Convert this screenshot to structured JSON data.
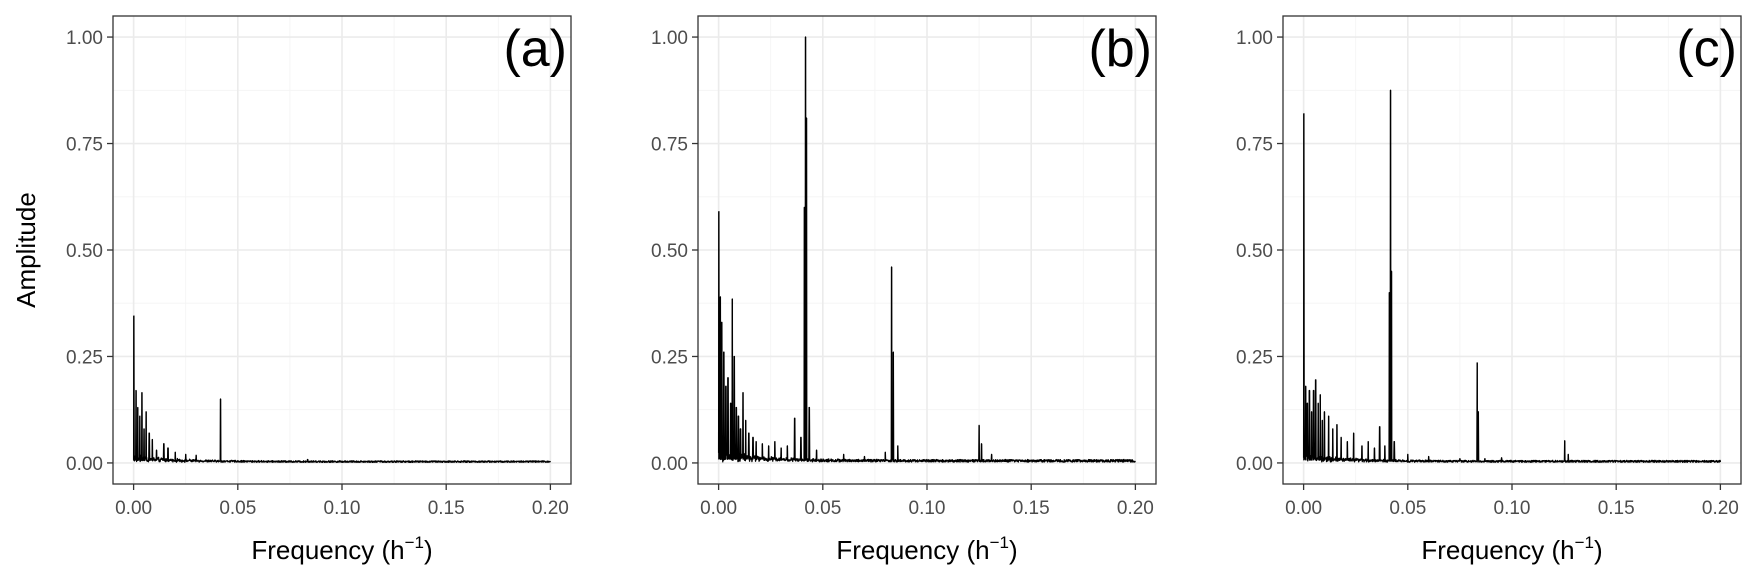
{
  "figure": {
    "ylabel": "Amplitude",
    "xlabel": "Frequency (h",
    "xlabel_sup": "−1",
    "xlabel_close": ")"
  },
  "chart_data": [
    {
      "type": "line",
      "panel_label": "(a)",
      "xlabel": "Frequency (h−1)",
      "ylabel": "Amplitude",
      "xlim": [
        0.0,
        0.2
      ],
      "ylim": [
        0.0,
        1.0
      ],
      "x_ticks": [
        "0.00",
        "0.05",
        "0.10",
        "0.15",
        "0.20"
      ],
      "y_ticks": [
        "0.00",
        "0.25",
        "0.50",
        "0.75",
        "1.00"
      ],
      "grid": true,
      "peaks": [
        {
          "x": 0.0001,
          "y": 0.345
        },
        {
          "x": 0.0012,
          "y": 0.17
        },
        {
          "x": 0.002,
          "y": 0.13
        },
        {
          "x": 0.003,
          "y": 0.11
        },
        {
          "x": 0.004,
          "y": 0.165
        },
        {
          "x": 0.005,
          "y": 0.08
        },
        {
          "x": 0.006,
          "y": 0.12
        },
        {
          "x": 0.0075,
          "y": 0.07
        },
        {
          "x": 0.009,
          "y": 0.055
        },
        {
          "x": 0.011,
          "y": 0.03
        },
        {
          "x": 0.0145,
          "y": 0.045
        },
        {
          "x": 0.0165,
          "y": 0.035
        },
        {
          "x": 0.02,
          "y": 0.025
        },
        {
          "x": 0.025,
          "y": 0.02
        },
        {
          "x": 0.03,
          "y": 0.018
        },
        {
          "x": 0.0417,
          "y": 0.15
        },
        {
          "x": 0.0835,
          "y": 0.008
        },
        {
          "x": 0.125,
          "y": 0.004
        }
      ],
      "noise_floor": 0.005
    },
    {
      "type": "line",
      "panel_label": "(b)",
      "xlabel": "Frequency (h−1)",
      "xlim": [
        0.0,
        0.2
      ],
      "ylim": [
        0.0,
        1.0
      ],
      "x_ticks": [
        "0.00",
        "0.05",
        "0.10",
        "0.15",
        "0.20"
      ],
      "y_ticks": [
        "0.00",
        "0.25",
        "0.50",
        "0.75",
        "1.00"
      ],
      "grid": true,
      "peaks": [
        {
          "x": 0.0001,
          "y": 0.59
        },
        {
          "x": 0.0008,
          "y": 0.39
        },
        {
          "x": 0.0015,
          "y": 0.33
        },
        {
          "x": 0.0025,
          "y": 0.26
        },
        {
          "x": 0.0035,
          "y": 0.18
        },
        {
          "x": 0.0045,
          "y": 0.2
        },
        {
          "x": 0.0058,
          "y": 0.14
        },
        {
          "x": 0.0066,
          "y": 0.385
        },
        {
          "x": 0.0075,
          "y": 0.25
        },
        {
          "x": 0.0085,
          "y": 0.13
        },
        {
          "x": 0.0095,
          "y": 0.11
        },
        {
          "x": 0.0105,
          "y": 0.08
        },
        {
          "x": 0.0117,
          "y": 0.165
        },
        {
          "x": 0.013,
          "y": 0.1
        },
        {
          "x": 0.0145,
          "y": 0.07
        },
        {
          "x": 0.0165,
          "y": 0.06
        },
        {
          "x": 0.018,
          "y": 0.05
        },
        {
          "x": 0.021,
          "y": 0.045
        },
        {
          "x": 0.024,
          "y": 0.04
        },
        {
          "x": 0.027,
          "y": 0.05
        },
        {
          "x": 0.03,
          "y": 0.035
        },
        {
          "x": 0.033,
          "y": 0.04
        },
        {
          "x": 0.0365,
          "y": 0.105
        },
        {
          "x": 0.0395,
          "y": 0.06
        },
        {
          "x": 0.0412,
          "y": 0.6
        },
        {
          "x": 0.0417,
          "y": 1.0
        },
        {
          "x": 0.0422,
          "y": 0.81
        },
        {
          "x": 0.0435,
          "y": 0.13
        },
        {
          "x": 0.047,
          "y": 0.03
        },
        {
          "x": 0.06,
          "y": 0.02
        },
        {
          "x": 0.07,
          "y": 0.015
        },
        {
          "x": 0.08,
          "y": 0.025
        },
        {
          "x": 0.083,
          "y": 0.46
        },
        {
          "x": 0.0838,
          "y": 0.26
        },
        {
          "x": 0.086,
          "y": 0.04
        },
        {
          "x": 0.1,
          "y": 0.008
        },
        {
          "x": 0.125,
          "y": 0.088
        },
        {
          "x": 0.1262,
          "y": 0.045
        },
        {
          "x": 0.131,
          "y": 0.02
        },
        {
          "x": 0.15,
          "y": 0.005
        }
      ],
      "noise_floor": 0.008
    },
    {
      "type": "line",
      "panel_label": "(c)",
      "xlabel": "Frequency (h−1)",
      "xlim": [
        0.0,
        0.2
      ],
      "ylim": [
        0.0,
        1.0
      ],
      "x_ticks": [
        "0.00",
        "0.05",
        "0.10",
        "0.15",
        "0.20"
      ],
      "y_ticks": [
        "0.00",
        "0.25",
        "0.50",
        "0.75",
        "1.00"
      ],
      "grid": true,
      "peaks": [
        {
          "x": 0.0001,
          "y": 0.82
        },
        {
          "x": 0.001,
          "y": 0.18
        },
        {
          "x": 0.0018,
          "y": 0.14
        },
        {
          "x": 0.0028,
          "y": 0.17
        },
        {
          "x": 0.0038,
          "y": 0.12
        },
        {
          "x": 0.0048,
          "y": 0.17
        },
        {
          "x": 0.0058,
          "y": 0.195
        },
        {
          "x": 0.007,
          "y": 0.14
        },
        {
          "x": 0.008,
          "y": 0.16
        },
        {
          "x": 0.009,
          "y": 0.1
        },
        {
          "x": 0.01,
          "y": 0.12
        },
        {
          "x": 0.012,
          "y": 0.11
        },
        {
          "x": 0.014,
          "y": 0.08
        },
        {
          "x": 0.016,
          "y": 0.09
        },
        {
          "x": 0.018,
          "y": 0.06
        },
        {
          "x": 0.021,
          "y": 0.05
        },
        {
          "x": 0.024,
          "y": 0.07
        },
        {
          "x": 0.028,
          "y": 0.04
        },
        {
          "x": 0.031,
          "y": 0.05
        },
        {
          "x": 0.034,
          "y": 0.035
        },
        {
          "x": 0.0365,
          "y": 0.085
        },
        {
          "x": 0.039,
          "y": 0.04
        },
        {
          "x": 0.0412,
          "y": 0.4
        },
        {
          "x": 0.0417,
          "y": 0.875
        },
        {
          "x": 0.0422,
          "y": 0.45
        },
        {
          "x": 0.0435,
          "y": 0.05
        },
        {
          "x": 0.05,
          "y": 0.02
        },
        {
          "x": 0.06,
          "y": 0.015
        },
        {
          "x": 0.075,
          "y": 0.01
        },
        {
          "x": 0.0833,
          "y": 0.235
        },
        {
          "x": 0.0838,
          "y": 0.12
        },
        {
          "x": 0.087,
          "y": 0.01
        },
        {
          "x": 0.095,
          "y": 0.012
        },
        {
          "x": 0.1253,
          "y": 0.052
        },
        {
          "x": 0.127,
          "y": 0.02
        },
        {
          "x": 0.15,
          "y": 0.004
        }
      ],
      "noise_floor": 0.006
    }
  ]
}
